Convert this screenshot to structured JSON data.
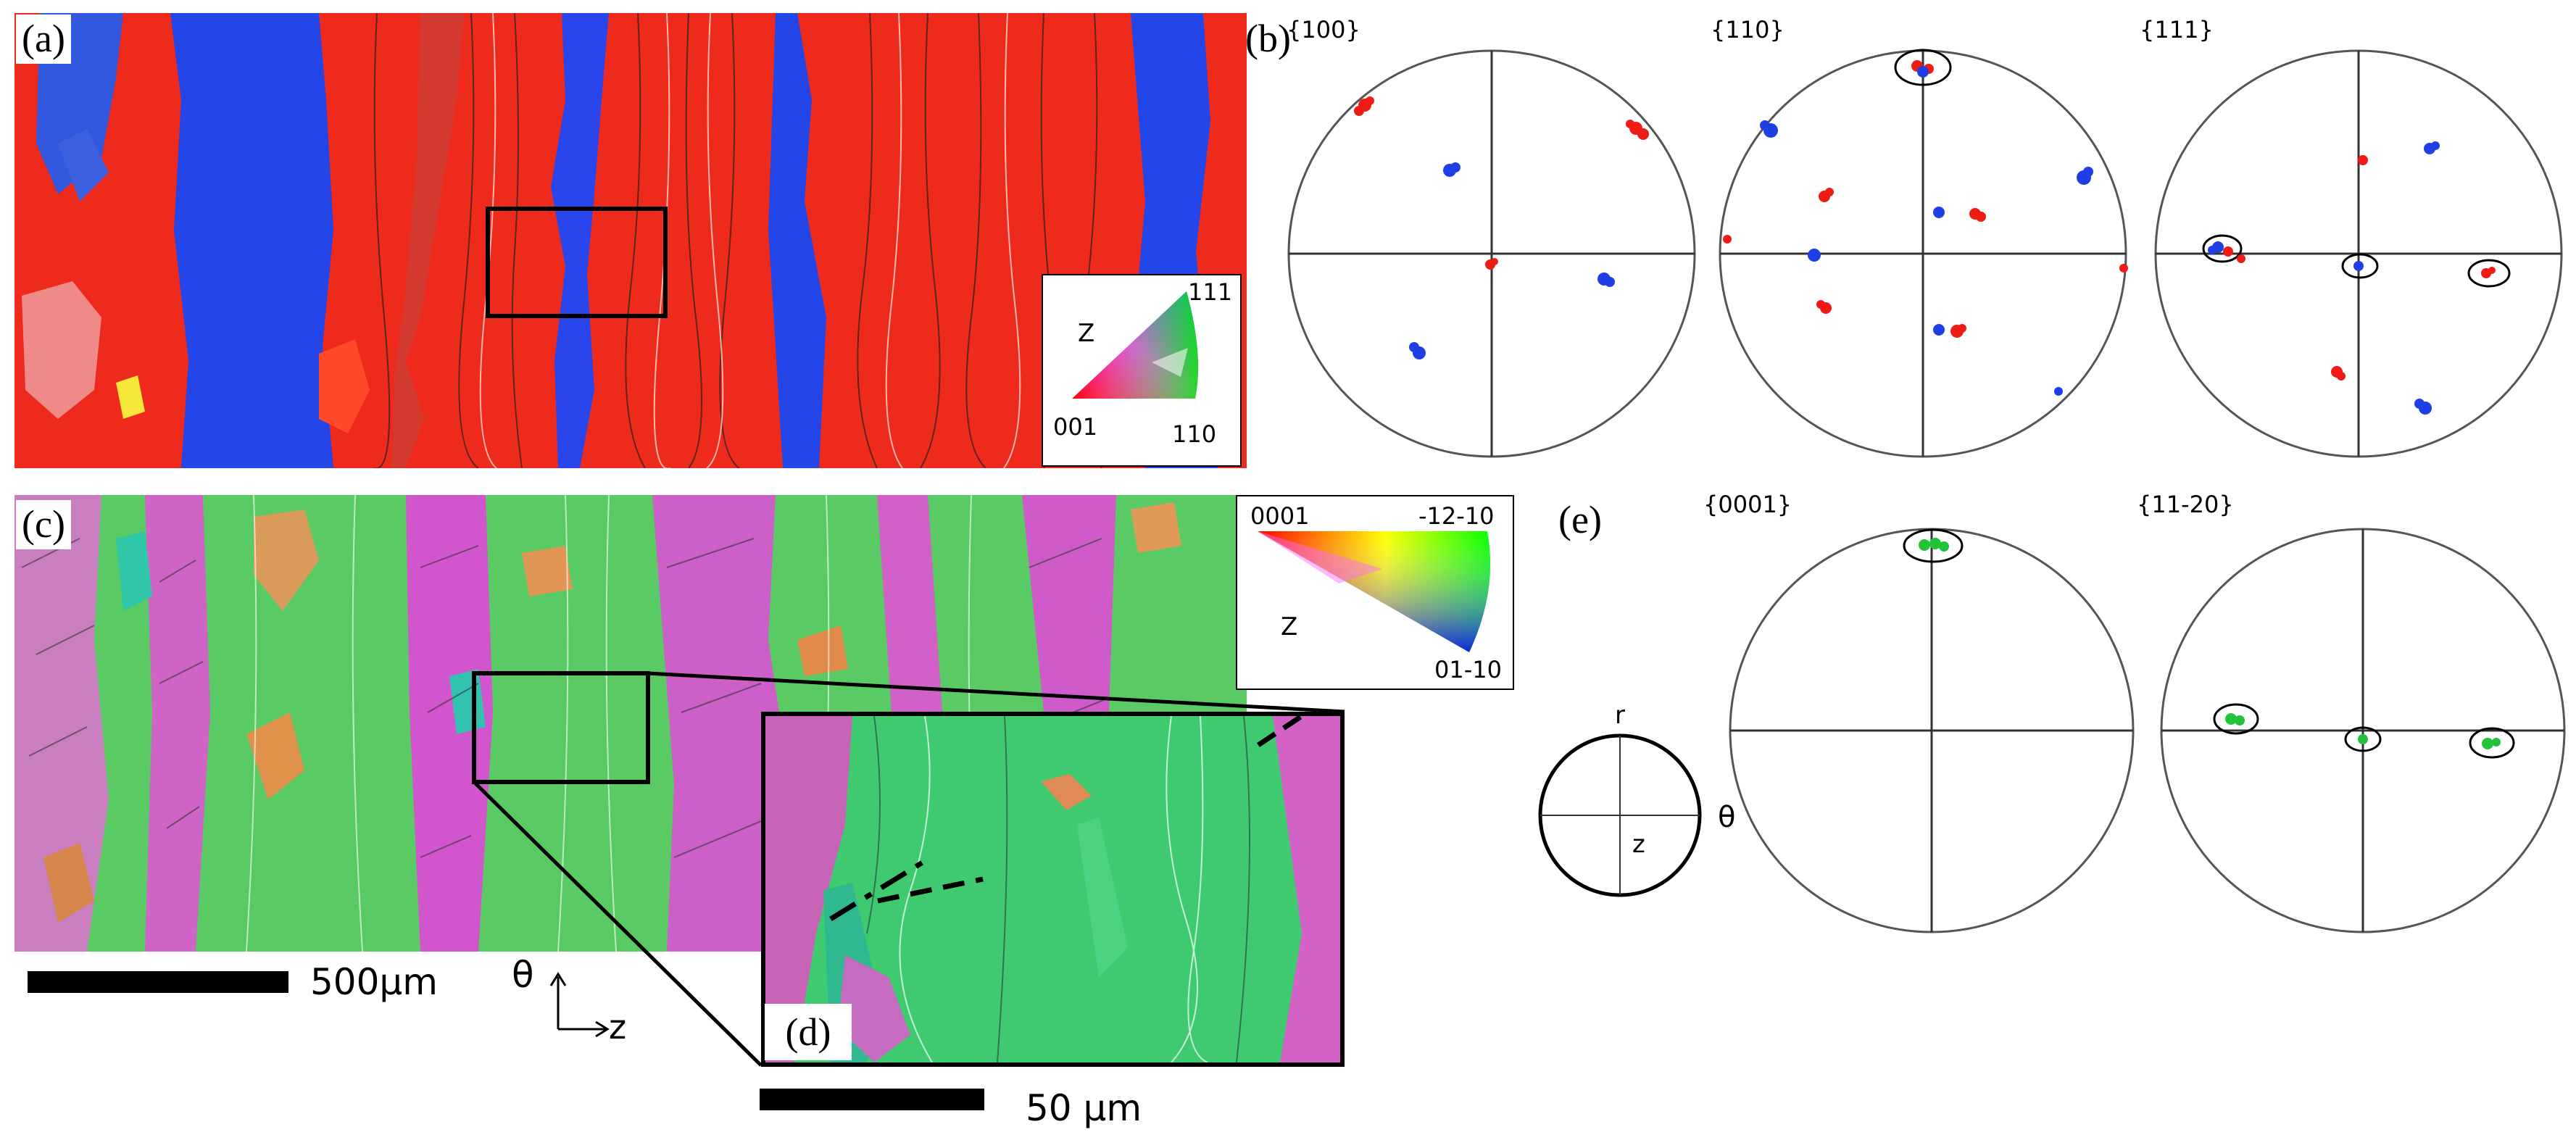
{
  "panels": {
    "a": {
      "label": "(a)"
    },
    "b": {
      "label": "(b)"
    },
    "c": {
      "label": "(c)"
    },
    "d": {
      "label": "(d)"
    },
    "e": {
      "label": "(e)"
    }
  },
  "legend_cubic": {
    "axis": "Z",
    "corner_left": "001",
    "corner_top": "111",
    "corner_right": "110"
  },
  "legend_hex": {
    "corner_left": "0001",
    "corner_right": "-12-10",
    "corner_bottom": "01-10",
    "axis": "Z"
  },
  "pole_figures": {
    "b_100": "{100}",
    "b_110": "{110}",
    "b_111": "{111}",
    "e_0001": "{0001}",
    "e_1120": "{11-20}"
  },
  "scale_main": "500μm",
  "scale_inset": "50 μm",
  "axes_main": {
    "theta": "θ",
    "z": "z"
  },
  "ref_circle": {
    "r": "r",
    "theta": "θ",
    "z": "z"
  },
  "colors": {
    "red": "#ee1c14",
    "blue": "#1f3fe6",
    "green": "#22c23a",
    "magenta": "#d659c8",
    "orange": "#e0914a",
    "teal": "#30c6a8"
  }
}
